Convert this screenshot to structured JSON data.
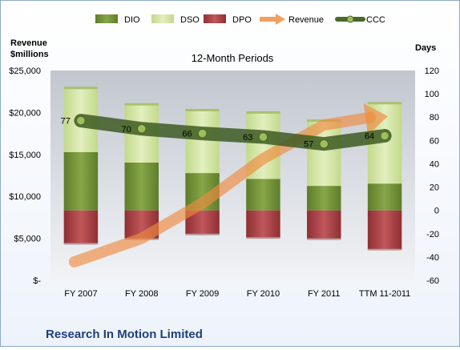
{
  "chart_data": {
    "type": "bar",
    "subtitle": "12-Month Periods",
    "company": "Research In Motion Limited",
    "categories": [
      "FY 2007",
      "FY 2008",
      "FY 2009",
      "FY 2010",
      "FY 2011",
      "TTM 11-2011"
    ],
    "y_left": {
      "label_line1": "Revenue",
      "label_line2": "$millions",
      "range": [
        0,
        25000
      ],
      "ticks": [
        0,
        5000,
        10000,
        15000,
        20000,
        25000
      ],
      "tick_labels": [
        "$-",
        "$5,000",
        "$10,000",
        "$15,000",
        "$20,000",
        "$25,000"
      ]
    },
    "y_right": {
      "label": "Days",
      "range": [
        -60,
        120
      ],
      "ticks": [
        -60,
        -40,
        -20,
        0,
        20,
        40,
        60,
        80,
        100,
        120
      ],
      "tick_labels": [
        "-60",
        "-40",
        "-20",
        "0",
        "20",
        "40",
        "60",
        "80",
        "100",
        "120"
      ]
    },
    "legend": {
      "position": "top",
      "items": [
        {
          "name": "DIO",
          "kind": "bar",
          "color": "#77963a"
        },
        {
          "name": "DSO",
          "kind": "bar",
          "color": "#d6e6a9"
        },
        {
          "name": "DPO",
          "kind": "bar",
          "color": "#b3464a"
        },
        {
          "name": "Revenue",
          "kind": "arrow",
          "color": "#f0a060"
        },
        {
          "name": "CCC",
          "kind": "line",
          "color": "#4a6a2b"
        }
      ]
    },
    "series": [
      {
        "name": "DIO",
        "axis": "right",
        "values": [
          50,
          41,
          32,
          27,
          21,
          23
        ]
      },
      {
        "name": "DSO",
        "axis": "right",
        "values": [
          55,
          50,
          54,
          57,
          56,
          69
        ]
      },
      {
        "name": "DPO",
        "axis": "right",
        "values": [
          -28,
          -24,
          -20,
          -23,
          -24,
          -33
        ]
      },
      {
        "name": "CCC",
        "axis": "right",
        "values": [
          77,
          70,
          66,
          63,
          57,
          64
        ]
      },
      {
        "name": "Revenue",
        "axis": "left",
        "values": [
          2200,
          5000,
          9200,
          14500,
          18500,
          19500
        ]
      }
    ],
    "ccc_labels": [
      "77",
      "70",
      "66",
      "63",
      "57",
      "64"
    ],
    "grid": false
  }
}
